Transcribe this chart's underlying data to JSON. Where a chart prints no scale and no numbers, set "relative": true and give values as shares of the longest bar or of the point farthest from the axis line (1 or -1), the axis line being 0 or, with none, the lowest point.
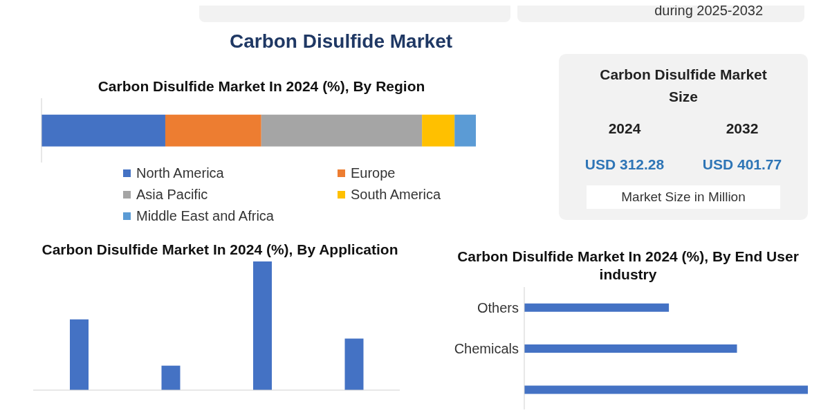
{
  "chart_data": [
    {
      "type": "other",
      "title": "Carbon Disulfide Market",
      "annotations": [
        "during 2025-2032"
      ]
    },
    {
      "type": "bar",
      "title": "Carbon Disulfide Market In 2024 (%), By Region",
      "orientation": "horizontal",
      "stacked": true,
      "relative": true,
      "categories": [
        null
      ],
      "legend": "bottom",
      "series": [
        {
          "name": "North America",
          "color": "#4472c4",
          "values": [
            0.285
          ]
        },
        {
          "name": "Europe",
          "color": "#ed7d31",
          "values": [
            0.221
          ]
        },
        {
          "name": "Asia Pacific",
          "color": "#a5a5a5",
          "values": [
            0.37
          ]
        },
        {
          "name": "South America",
          "color": "#ffc000",
          "values": [
            0.075
          ]
        },
        {
          "name": "Middle East and Africa",
          "color": "#5b9bd5",
          "values": [
            0.049
          ]
        }
      ]
    },
    {
      "type": "other",
      "title": "Carbon Disulfide Market Size",
      "categories": [
        "2024",
        "2032"
      ],
      "value_labels": [
        "USD 312.28",
        "USD 401.77"
      ],
      "annotations": [
        "Market Size in Million"
      ]
    },
    {
      "type": "bar",
      "title": "Carbon Disulfide Market In 2024 (%), By Application",
      "relative": true,
      "categories": [
        null,
        null,
        null,
        null
      ],
      "values": [
        0.55,
        0.19,
        1,
        0.4
      ],
      "color": "#4472c4"
    },
    {
      "type": "bar",
      "title": "Carbon Disulfide Market In 2024 (%), By End User industry",
      "orientation": "horizontal",
      "relative": true,
      "categories": [
        "Others",
        "Chemicals",
        null
      ],
      "values": [
        0.51,
        0.75,
        1
      ],
      "color": "#4472c4"
    }
  ]
}
